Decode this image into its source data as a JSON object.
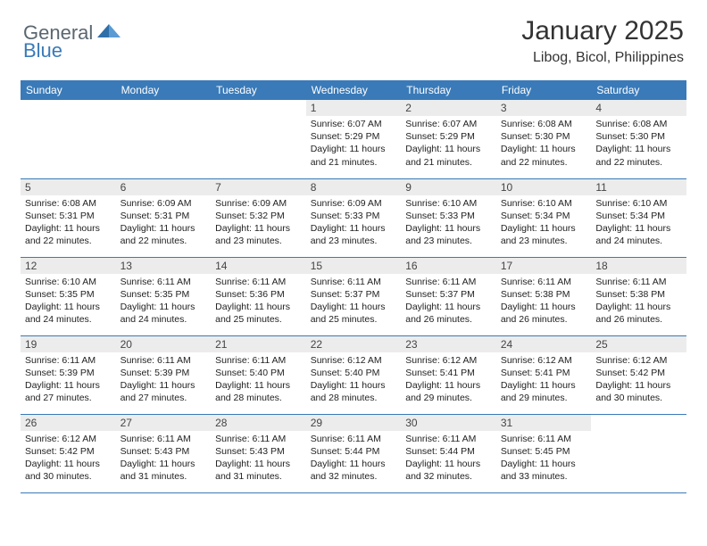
{
  "logo": {
    "text1": "General",
    "text2": "Blue"
  },
  "title": "January 2025",
  "subtitle": "Libog, Bicol, Philippines",
  "colors": {
    "header_bg": "#3a7ab8",
    "header_fg": "#ffffff",
    "daynum_bg": "#ececec",
    "border": "#3a7ab8",
    "logo_gray": "#5a6770",
    "logo_blue": "#3a7ab8"
  },
  "weekdays": [
    "Sunday",
    "Monday",
    "Tuesday",
    "Wednesday",
    "Thursday",
    "Friday",
    "Saturday"
  ],
  "first_weekday_index": 3,
  "days": [
    {
      "n": 1,
      "sr": "6:07 AM",
      "ss": "5:29 PM",
      "dl": "11 hours and 21 minutes."
    },
    {
      "n": 2,
      "sr": "6:07 AM",
      "ss": "5:29 PM",
      "dl": "11 hours and 21 minutes."
    },
    {
      "n": 3,
      "sr": "6:08 AM",
      "ss": "5:30 PM",
      "dl": "11 hours and 22 minutes."
    },
    {
      "n": 4,
      "sr": "6:08 AM",
      "ss": "5:30 PM",
      "dl": "11 hours and 22 minutes."
    },
    {
      "n": 5,
      "sr": "6:08 AM",
      "ss": "5:31 PM",
      "dl": "11 hours and 22 minutes."
    },
    {
      "n": 6,
      "sr": "6:09 AM",
      "ss": "5:31 PM",
      "dl": "11 hours and 22 minutes."
    },
    {
      "n": 7,
      "sr": "6:09 AM",
      "ss": "5:32 PM",
      "dl": "11 hours and 23 minutes."
    },
    {
      "n": 8,
      "sr": "6:09 AM",
      "ss": "5:33 PM",
      "dl": "11 hours and 23 minutes."
    },
    {
      "n": 9,
      "sr": "6:10 AM",
      "ss": "5:33 PM",
      "dl": "11 hours and 23 minutes."
    },
    {
      "n": 10,
      "sr": "6:10 AM",
      "ss": "5:34 PM",
      "dl": "11 hours and 23 minutes."
    },
    {
      "n": 11,
      "sr": "6:10 AM",
      "ss": "5:34 PM",
      "dl": "11 hours and 24 minutes."
    },
    {
      "n": 12,
      "sr": "6:10 AM",
      "ss": "5:35 PM",
      "dl": "11 hours and 24 minutes."
    },
    {
      "n": 13,
      "sr": "6:11 AM",
      "ss": "5:35 PM",
      "dl": "11 hours and 24 minutes."
    },
    {
      "n": 14,
      "sr": "6:11 AM",
      "ss": "5:36 PM",
      "dl": "11 hours and 25 minutes."
    },
    {
      "n": 15,
      "sr": "6:11 AM",
      "ss": "5:37 PM",
      "dl": "11 hours and 25 minutes."
    },
    {
      "n": 16,
      "sr": "6:11 AM",
      "ss": "5:37 PM",
      "dl": "11 hours and 26 minutes."
    },
    {
      "n": 17,
      "sr": "6:11 AM",
      "ss": "5:38 PM",
      "dl": "11 hours and 26 minutes."
    },
    {
      "n": 18,
      "sr": "6:11 AM",
      "ss": "5:38 PM",
      "dl": "11 hours and 26 minutes."
    },
    {
      "n": 19,
      "sr": "6:11 AM",
      "ss": "5:39 PM",
      "dl": "11 hours and 27 minutes."
    },
    {
      "n": 20,
      "sr": "6:11 AM",
      "ss": "5:39 PM",
      "dl": "11 hours and 27 minutes."
    },
    {
      "n": 21,
      "sr": "6:11 AM",
      "ss": "5:40 PM",
      "dl": "11 hours and 28 minutes."
    },
    {
      "n": 22,
      "sr": "6:12 AM",
      "ss": "5:40 PM",
      "dl": "11 hours and 28 minutes."
    },
    {
      "n": 23,
      "sr": "6:12 AM",
      "ss": "5:41 PM",
      "dl": "11 hours and 29 minutes."
    },
    {
      "n": 24,
      "sr": "6:12 AM",
      "ss": "5:41 PM",
      "dl": "11 hours and 29 minutes."
    },
    {
      "n": 25,
      "sr": "6:12 AM",
      "ss": "5:42 PM",
      "dl": "11 hours and 30 minutes."
    },
    {
      "n": 26,
      "sr": "6:12 AM",
      "ss": "5:42 PM",
      "dl": "11 hours and 30 minutes."
    },
    {
      "n": 27,
      "sr": "6:11 AM",
      "ss": "5:43 PM",
      "dl": "11 hours and 31 minutes."
    },
    {
      "n": 28,
      "sr": "6:11 AM",
      "ss": "5:43 PM",
      "dl": "11 hours and 31 minutes."
    },
    {
      "n": 29,
      "sr": "6:11 AM",
      "ss": "5:44 PM",
      "dl": "11 hours and 32 minutes."
    },
    {
      "n": 30,
      "sr": "6:11 AM",
      "ss": "5:44 PM",
      "dl": "11 hours and 32 minutes."
    },
    {
      "n": 31,
      "sr": "6:11 AM",
      "ss": "5:45 PM",
      "dl": "11 hours and 33 minutes."
    }
  ]
}
